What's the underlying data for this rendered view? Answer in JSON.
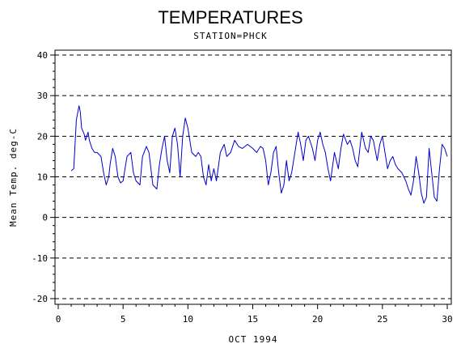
{
  "chart_data": {
    "type": "line",
    "title": "TEMPERATURES",
    "subtitle": "STATION=PHCK",
    "xlabel": "OCT 1994",
    "ylabel": "Mean Temp. deg-C",
    "xlim": [
      0,
      30
    ],
    "ylim": [
      -20,
      40
    ],
    "xticks": [
      0,
      5,
      10,
      15,
      20,
      25,
      30
    ],
    "yticks": [
      -20,
      -10,
      0,
      10,
      20,
      30,
      40
    ],
    "grid": "horizontal-dashed",
    "line_color": "#0000cc",
    "series": [
      {
        "x": [
          1.0,
          1.2,
          1.4,
          1.6,
          1.7,
          1.8,
          2.0,
          2.1,
          2.3,
          2.4,
          2.6,
          2.8,
          3.0,
          3.3,
          3.5,
          3.7,
          3.9,
          4.0,
          4.2,
          4.4,
          4.6,
          4.8,
          5.0,
          5.3,
          5.6,
          5.8,
          6.0,
          6.3,
          6.5,
          6.8,
          7.0,
          7.3,
          7.6,
          7.8,
          8.0,
          8.2,
          8.4,
          8.6,
          8.8,
          9.0,
          9.2,
          9.4,
          9.6,
          9.8,
          10.0,
          10.3,
          10.6,
          10.8,
          11.0,
          11.2,
          11.4,
          11.6,
          11.8,
          12.0,
          12.2,
          12.5,
          12.8,
          13.0,
          13.3,
          13.6,
          13.9,
          14.2,
          14.6,
          15.0,
          15.3,
          15.6,
          15.8,
          16.0,
          16.2,
          16.4,
          16.6,
          16.8,
          17.0,
          17.2,
          17.4,
          17.6,
          17.8,
          18.0,
          18.3,
          18.5,
          18.7,
          18.9,
          19.1,
          19.3,
          19.6,
          19.8,
          20.0,
          20.2,
          20.4,
          20.6,
          20.8,
          21.0,
          21.3,
          21.6,
          21.8,
          22.0,
          22.3,
          22.5,
          22.7,
          22.9,
          23.1,
          23.4,
          23.7,
          23.9,
          24.1,
          24.3,
          24.6,
          24.8,
          25.0,
          25.2,
          25.4,
          25.6,
          25.8,
          26.0,
          26.2,
          26.5,
          26.8,
          27.0,
          27.2,
          27.4,
          27.6,
          27.8,
          28.0,
          28.2,
          28.4,
          28.6,
          28.8,
          29.0,
          29.2,
          29.4,
          29.6,
          29.8,
          30.0
        ],
        "values": [
          11.5,
          12,
          24,
          27.5,
          26,
          22,
          20.5,
          19,
          21,
          19,
          17,
          16,
          16,
          15,
          11,
          8,
          10,
          13,
          17,
          15,
          10,
          8.5,
          9,
          15,
          16,
          11,
          9,
          8,
          15,
          17.5,
          16,
          8,
          7,
          13,
          17,
          20,
          14,
          11,
          20,
          22,
          18,
          10,
          20,
          24.5,
          22,
          16,
          15,
          16,
          15,
          10,
          8,
          13,
          9,
          12,
          9,
          16,
          18,
          15,
          16,
          19,
          17.5,
          17,
          18,
          17,
          16,
          17.5,
          17,
          14,
          8,
          11,
          16,
          17.5,
          11,
          6,
          8,
          14,
          9,
          11,
          17,
          21,
          18,
          14,
          19,
          20,
          17,
          14,
          19,
          21,
          18,
          16,
          12,
          9,
          16,
          12,
          17,
          20.5,
          18,
          19,
          17,
          14,
          12.5,
          21,
          17,
          16,
          20,
          19,
          14,
          18,
          20,
          16,
          12,
          14,
          15,
          13,
          12,
          11,
          9,
          7,
          5.5,
          9,
          15,
          11,
          6,
          3.5,
          5,
          17,
          11,
          5,
          4,
          12,
          18,
          17,
          15
        ]
      }
    ]
  }
}
